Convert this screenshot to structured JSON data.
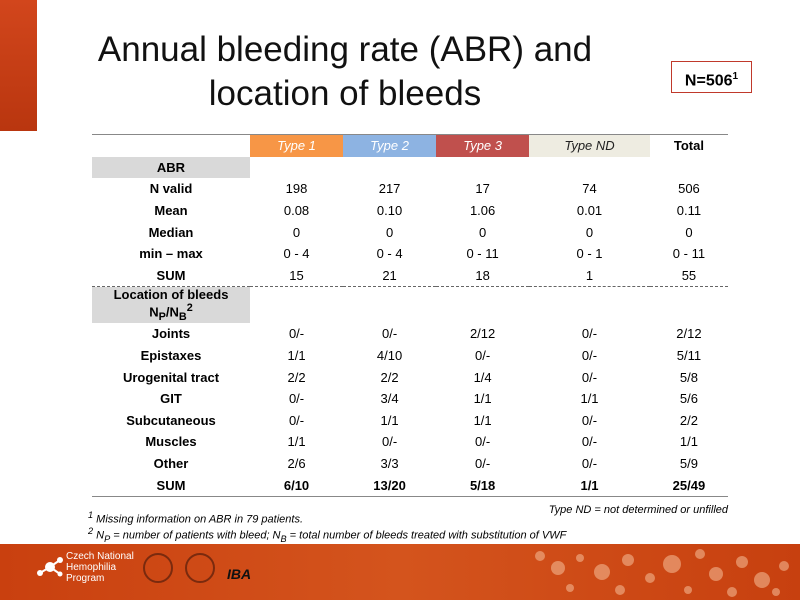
{
  "title_line1": "Annual bleeding rate (ABR) and",
  "title_line2": "location of bleeds",
  "n_label": "N=506",
  "n_sup": "1",
  "columns": [
    "Type 1",
    "Type 2",
    "Type 3",
    "Type ND",
    "Total"
  ],
  "abr_section": "ABR",
  "abr_rows": [
    {
      "label": "N valid",
      "values": [
        "198",
        "217",
        "17",
        "74",
        "506"
      ]
    },
    {
      "label": "Mean",
      "values": [
        "0.08",
        "0.10",
        "1.06",
        "0.01",
        "0.11"
      ]
    },
    {
      "label": "Median",
      "values": [
        "0",
        "0",
        "0",
        "0",
        "0"
      ]
    },
    {
      "label": "min – max",
      "values": [
        "0 - 4",
        "0 - 4",
        "0 - 11",
        "0 - 1",
        "0 - 11"
      ]
    },
    {
      "label": "SUM",
      "values": [
        "15",
        "21",
        "18",
        "1",
        "55"
      ]
    }
  ],
  "location_section_line1": "Location of bleeds",
  "location_section_np": "N",
  "location_section_np_sub": "P",
  "location_section_slash": "/N",
  "location_section_nb_sub": "B",
  "location_section_sup": "2",
  "location_rows": [
    {
      "label": "Joints",
      "values": [
        "0/-",
        "0/-",
        "2/12",
        "0/-",
        "2/12"
      ]
    },
    {
      "label": "Epistaxes",
      "values": [
        "1/1",
        "4/10",
        "0/-",
        "0/-",
        "5/11"
      ]
    },
    {
      "label": "Urogenital tract",
      "values": [
        "2/2",
        "2/2",
        "1/4",
        "0/-",
        "5/8"
      ]
    },
    {
      "label": "GIT",
      "values": [
        "0/-",
        "3/4",
        "1/1",
        "1/1",
        "5/6"
      ]
    },
    {
      "label": "Subcutaneous",
      "values": [
        "0/-",
        "1/1",
        "1/1",
        "0/-",
        "2/2"
      ]
    },
    {
      "label": "Muscles",
      "values": [
        "1/1",
        "0/-",
        "0/-",
        "0/-",
        "1/1"
      ]
    },
    {
      "label": "Other",
      "values": [
        "2/6",
        "3/3",
        "0/-",
        "0/-",
        "5/9"
      ]
    },
    {
      "label": "SUM",
      "values": [
        "6/10",
        "13/20",
        "5/18",
        "1/1",
        "25/49"
      ]
    }
  ],
  "note_right": "Type ND = not determined or unfilled",
  "footnote1_sup": "1",
  "footnote1": " Missing information on ABR in 79 patients.",
  "footnote2_sup": "2",
  "footnote2_a": " N",
  "footnote2_a_sub": "P",
  "footnote2_b": " = number of patients with bleed; N",
  "footnote2_b_sub": "B",
  "footnote2_c": " = total number of bleeds treated with substitution of VWF",
  "footer_logo_line1": "Czech National",
  "footer_logo_line2": "Hemophilia",
  "footer_logo_line3": "Program",
  "footer_iba": "IBA",
  "colors": {
    "type1": "#f79646",
    "type2": "#8db3e2",
    "type3": "#c0504d",
    "typeND": "#eeece1",
    "footer": "#c9400f"
  }
}
